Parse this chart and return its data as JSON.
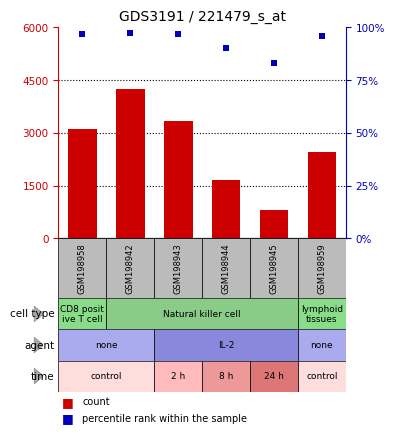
{
  "title": "GDS3191 / 221479_s_at",
  "samples": [
    "GSM198958",
    "GSM198942",
    "GSM198943",
    "GSM198944",
    "GSM198945",
    "GSM198959"
  ],
  "counts": [
    3100,
    4250,
    3350,
    1650,
    800,
    2450
  ],
  "percentile_ranks": [
    97,
    97.5,
    97,
    90,
    83,
    96
  ],
  "ylim_left": [
    0,
    6000
  ],
  "ylim_right": [
    0,
    100
  ],
  "yticks_left": [
    0,
    1500,
    3000,
    4500,
    6000
  ],
  "yticks_right": [
    0,
    25,
    50,
    75,
    100
  ],
  "bar_color": "#cc0000",
  "dot_color": "#0000bb",
  "cell_type_data": [
    {
      "label": "CD8 posit\nive T cell",
      "span": [
        0,
        1
      ],
      "color": "#88dd88"
    },
    {
      "label": "Natural killer cell",
      "span": [
        1,
        5
      ],
      "color": "#88cc88"
    },
    {
      "label": "lymphoid\ntissues",
      "span": [
        5,
        6
      ],
      "color": "#88dd88"
    }
  ],
  "agent_data": [
    {
      "label": "none",
      "span": [
        0,
        2
      ],
      "color": "#aaaaee"
    },
    {
      "label": "IL-2",
      "span": [
        2,
        5
      ],
      "color": "#8888dd"
    },
    {
      "label": "none",
      "span": [
        5,
        6
      ],
      "color": "#aaaaee"
    }
  ],
  "time_data": [
    {
      "label": "control",
      "span": [
        0,
        2
      ],
      "color": "#ffdddd"
    },
    {
      "label": "2 h",
      "span": [
        2,
        3
      ],
      "color": "#ffbbbb"
    },
    {
      "label": "8 h",
      "span": [
        3,
        4
      ],
      "color": "#ee9999"
    },
    {
      "label": "24 h",
      "span": [
        4,
        5
      ],
      "color": "#dd7777"
    },
    {
      "label": "control",
      "span": [
        5,
        6
      ],
      "color": "#ffdddd"
    }
  ],
  "row_labels": [
    "cell type",
    "agent",
    "time"
  ],
  "sample_box_color": "#bbbbbb",
  "left_axis_color": "#cc0000",
  "right_axis_color": "#0000bb",
  "bg_color": "#ffffff"
}
